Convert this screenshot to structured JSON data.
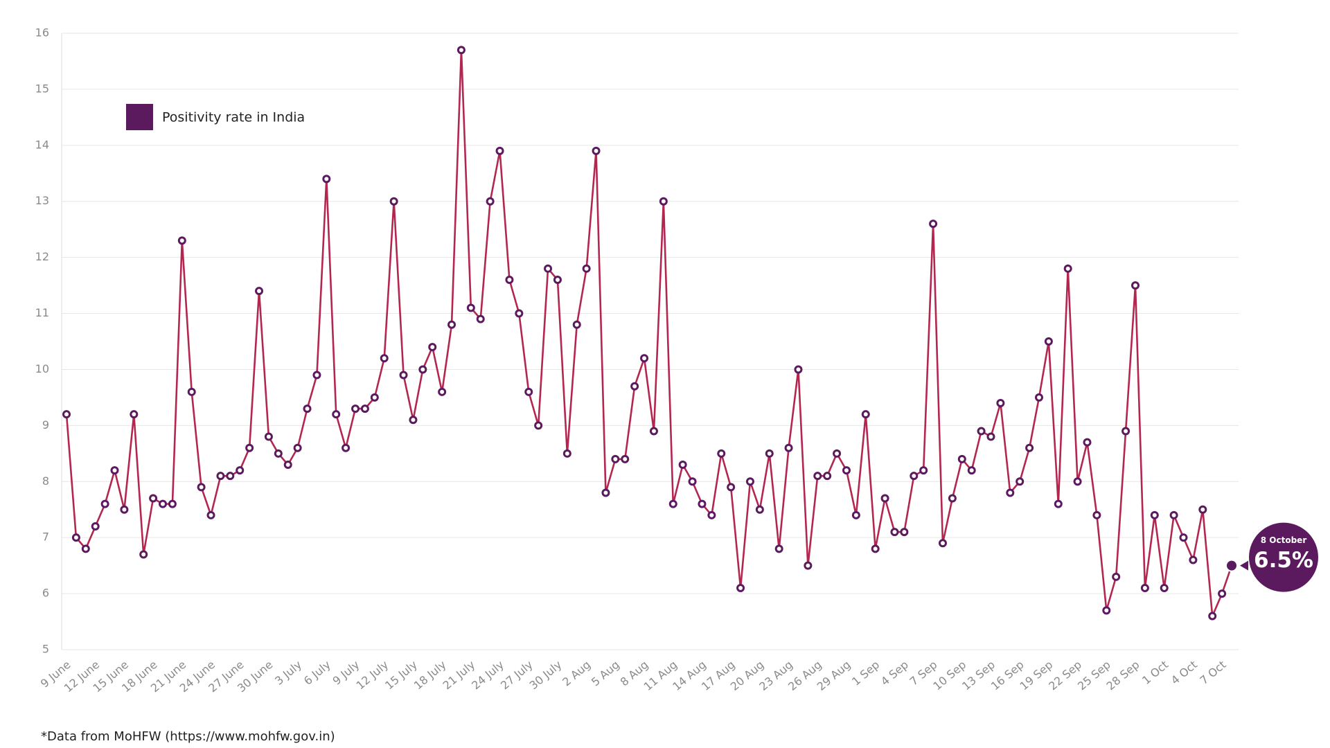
{
  "chart_data": {
    "type": "line",
    "legend": "top-left",
    "grid": true,
    "categories": [
      "9 June",
      null,
      null,
      "12 June",
      null,
      null,
      "15 June",
      null,
      null,
      "18 June",
      null,
      null,
      "21 June",
      null,
      null,
      "24 June",
      null,
      null,
      "27 June",
      null,
      null,
      "30 June",
      null,
      null,
      "3 July",
      null,
      null,
      "6 July",
      null,
      null,
      "9 July",
      null,
      null,
      "12 July",
      null,
      null,
      "15 July",
      null,
      null,
      "18 July",
      null,
      null,
      "21 July",
      null,
      null,
      "24 July",
      null,
      null,
      "27 July",
      null,
      null,
      "30 July",
      null,
      null,
      "2 Aug",
      null,
      null,
      "5 Aug",
      null,
      null,
      "8 Aug",
      null,
      null,
      "11 Aug",
      null,
      null,
      "14 Aug",
      null,
      null,
      "17 Aug",
      null,
      null,
      "20 Aug",
      null,
      null,
      "23 Aug",
      null,
      null,
      "26 Aug",
      null,
      null,
      "29 Aug",
      null,
      null,
      "1 Sep",
      null,
      null,
      "4 Sep",
      null,
      null,
      "7 Sep",
      null,
      null,
      "10 Sep",
      null,
      null,
      "13 Sep",
      null,
      null,
      "16 Sep",
      null,
      null,
      "19 Sep",
      null,
      null,
      "22 Sep",
      null,
      null,
      "25 Sep",
      null,
      null,
      "28 Sep",
      null,
      null,
      "1 Oct",
      null,
      null,
      "4 Oct",
      null,
      null,
      "7 Oct",
      null
    ],
    "series": [
      {
        "name": "Positivity rate in India",
        "color": "#5c1a5e",
        "line_color": "#b3264f",
        "values": [
          9.2,
          7.0,
          6.8,
          7.2,
          7.6,
          8.2,
          7.5,
          9.2,
          6.7,
          7.7,
          7.6,
          7.6,
          12.3,
          9.6,
          7.9,
          7.4,
          8.1,
          8.1,
          8.2,
          8.6,
          11.4,
          8.8,
          8.5,
          8.3,
          8.6,
          9.3,
          9.9,
          13.4,
          9.2,
          8.6,
          9.3,
          9.3,
          9.5,
          10.2,
          13.0,
          9.9,
          9.1,
          10.0,
          10.4,
          9.6,
          10.8,
          15.7,
          11.1,
          10.9,
          13.0,
          13.9,
          11.6,
          11.0,
          9.6,
          9.0,
          11.8,
          11.6,
          8.5,
          10.8,
          11.8,
          13.9,
          7.8,
          8.4,
          8.4,
          9.7,
          10.2,
          8.9,
          13.0,
          7.6,
          8.3,
          8.0,
          7.6,
          7.4,
          8.5,
          7.9,
          6.1,
          8.0,
          7.5,
          8.5,
          6.8,
          8.6,
          10.0,
          6.5,
          8.1,
          8.1,
          8.5,
          8.2,
          7.4,
          9.2,
          6.8,
          7.7,
          7.1,
          7.1,
          8.1,
          8.2,
          12.6,
          6.9,
          7.7,
          8.4,
          8.2,
          8.9,
          8.8,
          9.4,
          7.8,
          8.0,
          8.6,
          9.5,
          10.5,
          7.6,
          11.8,
          8.0,
          8.7,
          7.4,
          5.7,
          6.3,
          8.9,
          11.5,
          6.1,
          7.4,
          6.1,
          7.4,
          7.0,
          6.6,
          7.5,
          5.6,
          6.0,
          6.5
        ],
        "value_labels": [
          null,
          null,
          null,
          null,
          null,
          null,
          null,
          null,
          null,
          null,
          null,
          null,
          null,
          null,
          null,
          null,
          null,
          null,
          null,
          null,
          null,
          null,
          null,
          null,
          null,
          null,
          null,
          null,
          null,
          null,
          null,
          null,
          null,
          null,
          null,
          null,
          null,
          null,
          null,
          null,
          null,
          null,
          null,
          null,
          null,
          null,
          null,
          null,
          null,
          null,
          null,
          null,
          null,
          null,
          null,
          null,
          null,
          null,
          null,
          null,
          null,
          null,
          null,
          null,
          null,
          null,
          null,
          null,
          null,
          null,
          null,
          null,
          null,
          null,
          null,
          null,
          null,
          null,
          null,
          null,
          null,
          null,
          null,
          null,
          null,
          null,
          null,
          null,
          null,
          null,
          null,
          null,
          null,
          null,
          null,
          null,
          null,
          null,
          null,
          null,
          null,
          null,
          null,
          null,
          null,
          null,
          null,
          null,
          null,
          null,
          null,
          null,
          null,
          null,
          null,
          null,
          null,
          null,
          null,
          null,
          null,
          "6.5%"
        ]
      }
    ],
    "callout_title": "8 October",
    "ylim": [
      5,
      16
    ],
    "yticks": [
      5,
      6,
      7,
      8,
      9,
      10,
      11,
      12,
      13,
      14,
      15,
      16
    ],
    "footnote": "*Data from MoHFW (https://www.mohfw.gov.in)"
  }
}
